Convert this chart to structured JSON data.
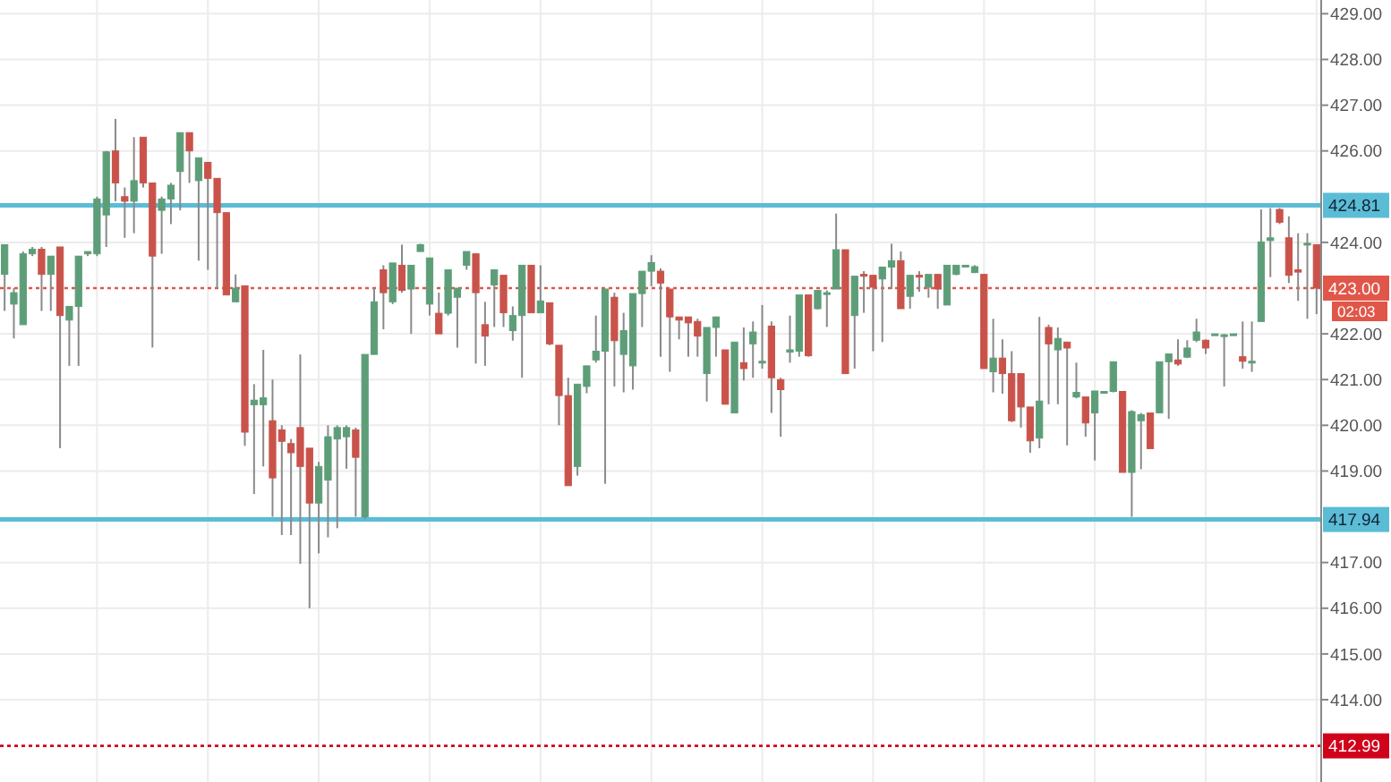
{
  "chart_data": {
    "type": "candlestick",
    "categories": [
      null,
      null,
      null,
      null,
      null,
      null,
      null,
      null,
      null,
      null,
      null,
      null,
      null,
      null,
      null,
      null,
      null,
      null,
      null,
      null,
      null,
      null,
      null,
      null,
      null,
      null,
      null,
      null,
      null,
      null,
      null,
      null,
      null,
      null,
      null,
      null,
      null,
      null,
      null,
      null,
      null,
      null,
      null,
      null,
      null,
      null,
      null,
      null,
      null,
      null,
      null,
      null,
      null,
      null,
      null,
      null,
      null,
      null,
      null,
      null,
      null,
      null,
      null,
      null,
      null,
      null,
      null,
      null,
      null,
      null,
      null,
      null,
      null,
      null,
      null,
      null,
      null,
      null,
      null,
      null,
      null,
      null,
      null,
      null,
      null,
      null,
      null,
      null,
      null,
      null,
      null,
      null,
      null,
      null,
      null,
      null,
      null,
      null,
      null,
      null,
      null,
      null,
      null,
      null,
      null,
      null,
      null,
      null,
      null,
      null,
      null,
      null,
      null,
      null,
      null,
      null,
      null,
      null,
      null,
      null,
      null,
      null,
      null,
      null,
      null,
      null,
      null,
      null,
      null,
      null,
      null,
      null,
      null,
      null,
      null,
      null,
      null,
      null,
      null,
      null,
      null,
      null,
      null
    ],
    "ohlc": [
      [
        423.3,
        423.95,
        422.5,
        423.95
      ],
      [
        422.65,
        423.0,
        421.9,
        422.9
      ],
      [
        422.2,
        423.8,
        422.2,
        423.75
      ],
      [
        423.75,
        423.9,
        423.7,
        423.85
      ],
      [
        423.85,
        423.9,
        422.5,
        423.3
      ],
      [
        423.3,
        423.7,
        422.5,
        423.7
      ],
      [
        423.9,
        423.9,
        419.5,
        422.4
      ],
      [
        422.3,
        422.6,
        421.3,
        422.6
      ],
      [
        422.6,
        423.7,
        421.3,
        423.7
      ],
      [
        423.75,
        423.8,
        423.7,
        423.8
      ],
      [
        423.75,
        425.0,
        423.7,
        424.95
      ],
      [
        424.6,
        426.0,
        423.9,
        425.98
      ],
      [
        426.0,
        426.7,
        424.9,
        425.3
      ],
      [
        425.0,
        425.2,
        424.1,
        424.9
      ],
      [
        424.9,
        426.3,
        424.2,
        425.35
      ],
      [
        426.3,
        426.3,
        425.2,
        425.3
      ],
      [
        425.3,
        425.3,
        421.7,
        423.7
      ],
      [
        424.7,
        425.0,
        423.75,
        424.95
      ],
      [
        424.95,
        425.3,
        424.4,
        425.25
      ],
      [
        425.55,
        426.4,
        424.7,
        426.4
      ],
      [
        426.4,
        426.4,
        425.3,
        426.0
      ],
      [
        425.35,
        425.85,
        423.6,
        425.85
      ],
      [
        425.75,
        425.75,
        423.4,
        425.4
      ],
      [
        425.4,
        425.4,
        423.0,
        424.65
      ],
      [
        424.65,
        424.65,
        422.85,
        422.85
      ],
      [
        422.7,
        423.3,
        422.7,
        423.0
      ],
      [
        423.05,
        423.05,
        419.55,
        419.85
      ],
      [
        420.45,
        420.9,
        418.5,
        420.55
      ],
      [
        420.45,
        421.65,
        419.1,
        420.6
      ],
      [
        420.1,
        421.0,
        418.0,
        418.85
      ],
      [
        419.9,
        420.0,
        417.6,
        419.65
      ],
      [
        419.6,
        419.7,
        417.6,
        419.4
      ],
      [
        419.95,
        421.55,
        416.97,
        419.1
      ],
      [
        419.5,
        419.5,
        416.0,
        418.3
      ],
      [
        418.3,
        419.2,
        417.2,
        419.1
      ],
      [
        418.8,
        420.0,
        417.55,
        419.75
      ],
      [
        419.7,
        420.0,
        417.75,
        419.95
      ],
      [
        419.75,
        420.0,
        419.05,
        419.95
      ],
      [
        419.9,
        419.95,
        418.0,
        419.3
      ],
      [
        418.0,
        421.55,
        417.95,
        421.55
      ],
      [
        421.55,
        423.0,
        421.55,
        422.7
      ],
      [
        423.4,
        423.5,
        422.1,
        422.9
      ],
      [
        422.7,
        423.55,
        422.65,
        423.55
      ],
      [
        423.5,
        423.95,
        422.9,
        422.95
      ],
      [
        422.98,
        423.5,
        422.0,
        423.5
      ],
      [
        423.8,
        423.97,
        423.8,
        423.95
      ],
      [
        422.65,
        423.66,
        422.4,
        423.66
      ],
      [
        422.45,
        422.9,
        422.0,
        422.0
      ],
      [
        422.45,
        423.4,
        422.4,
        423.4
      ],
      [
        422.8,
        423.0,
        421.7,
        423.0
      ],
      [
        423.5,
        423.8,
        423.4,
        423.8
      ],
      [
        423.75,
        423.75,
        421.35,
        422.9
      ],
      [
        422.2,
        422.7,
        421.3,
        421.95
      ],
      [
        423.07,
        423.4,
        422.15,
        423.4
      ],
      [
        423.28,
        423.28,
        422.15,
        422.46
      ],
      [
        422.07,
        422.6,
        421.85,
        422.4
      ],
      [
        422.4,
        423.5,
        421.04,
        423.5
      ],
      [
        423.5,
        423.5,
        422.46,
        422.46
      ],
      [
        422.46,
        423.5,
        422.46,
        422.72
      ],
      [
        422.68,
        422.68,
        421.75,
        421.78
      ],
      [
        421.75,
        421.75,
        420.0,
        420.65
      ],
      [
        420.65,
        421.04,
        418.68,
        418.68
      ],
      [
        419.1,
        420.9,
        418.9,
        420.9
      ],
      [
        420.85,
        421.3,
        420.7,
        421.3
      ],
      [
        421.43,
        422.4,
        421.37,
        421.62
      ],
      [
        421.62,
        422.98,
        418.72,
        422.98
      ],
      [
        422.8,
        422.9,
        420.85,
        421.85
      ],
      [
        421.55,
        422.46,
        420.72,
        422.07
      ],
      [
        421.3,
        422.88,
        420.78,
        422.88
      ],
      [
        422.88,
        423.37,
        422.15,
        423.37
      ],
      [
        423.37,
        423.72,
        423.04,
        423.56
      ],
      [
        423.37,
        423.43,
        421.5,
        423.11
      ],
      [
        422.98,
        422.98,
        421.17,
        422.37
      ],
      [
        422.37,
        422.37,
        421.88,
        422.3
      ],
      [
        422.37,
        422.37,
        421.5,
        422.24
      ],
      [
        422.27,
        422.33,
        421.5,
        421.95
      ],
      [
        421.13,
        422.14,
        420.52,
        422.14
      ],
      [
        422.14,
        422.37,
        421.5,
        422.37
      ],
      [
        421.65,
        421.65,
        420.46,
        420.46
      ],
      [
        420.27,
        421.82,
        420.27,
        421.82
      ],
      [
        421.37,
        422.14,
        420.98,
        421.24
      ],
      [
        421.78,
        422.27,
        421.04,
        422.04
      ],
      [
        421.39,
        422.63,
        421.24,
        421.4
      ],
      [
        422.17,
        422.27,
        420.27,
        421.04
      ],
      [
        421.0,
        421.04,
        419.75,
        420.78
      ],
      [
        421.6,
        422.4,
        421.37,
        421.65
      ],
      [
        421.62,
        422.85,
        421.5,
        422.85
      ],
      [
        422.85,
        422.85,
        421.5,
        421.52
      ],
      [
        422.55,
        422.95,
        422.53,
        422.95
      ],
      [
        422.9,
        422.95,
        422.15,
        422.9
      ],
      [
        422.98,
        424.63,
        422.98,
        423.84
      ],
      [
        423.84,
        423.84,
        421.13,
        421.13
      ],
      [
        422.4,
        423.26,
        421.24,
        423.26
      ],
      [
        423.3,
        423.37,
        422.46,
        423.26
      ],
      [
        423.28,
        423.28,
        421.62,
        423.02
      ],
      [
        423.2,
        423.46,
        421.82,
        423.46
      ],
      [
        423.46,
        423.97,
        422.98,
        423.6
      ],
      [
        423.6,
        423.8,
        422.55,
        422.55
      ],
      [
        422.82,
        423.28,
        422.55,
        423.28
      ],
      [
        423.28,
        423.37,
        422.92,
        423.25
      ],
      [
        423.02,
        423.3,
        422.79,
        423.3
      ],
      [
        423.3,
        423.3,
        422.55,
        422.98
      ],
      [
        422.63,
        423.5,
        422.63,
        423.5
      ],
      [
        423.3,
        423.5,
        423.28,
        423.5
      ],
      [
        423.5,
        423.5,
        423.48,
        423.5
      ],
      [
        423.34,
        423.5,
        423.33,
        423.47
      ],
      [
        423.3,
        423.3,
        421.24,
        421.24
      ],
      [
        421.17,
        422.33,
        420.72,
        421.47
      ],
      [
        421.47,
        421.88,
        420.69,
        421.13
      ],
      [
        421.13,
        421.62,
        420.07,
        420.1
      ],
      [
        421.13,
        421.13,
        419.95,
        420.4
      ],
      [
        420.4,
        420.4,
        419.4,
        419.66
      ],
      [
        419.72,
        422.37,
        419.5,
        420.53
      ],
      [
        422.14,
        422.2,
        420.46,
        421.78
      ],
      [
        421.65,
        422.14,
        420.46,
        421.9
      ],
      [
        421.82,
        421.82,
        419.56,
        421.69
      ],
      [
        420.62,
        421.37,
        420.59,
        420.72
      ],
      [
        420.62,
        420.62,
        419.75,
        420.05
      ],
      [
        420.27,
        420.75,
        419.23,
        420.75
      ],
      [
        420.74,
        420.75,
        420.72,
        420.74
      ],
      [
        420.74,
        421.39,
        420.72,
        421.39
      ],
      [
        420.74,
        420.74,
        418.97,
        418.97
      ],
      [
        418.97,
        420.33,
        418.0,
        420.3
      ],
      [
        420.1,
        420.27,
        419.04,
        420.23
      ],
      [
        420.27,
        420.27,
        419.49,
        419.49
      ],
      [
        420.27,
        421.39,
        420.27,
        421.39
      ],
      [
        421.39,
        421.56,
        420.14,
        421.56
      ],
      [
        421.43,
        421.88,
        421.3,
        421.34
      ],
      [
        421.49,
        421.86,
        421.47,
        421.69
      ],
      [
        421.86,
        422.33,
        421.82,
        422.04
      ],
      [
        421.86,
        421.88,
        421.56,
        421.69
      ],
      [
        422.0,
        422.0,
        421.97,
        422.0
      ],
      [
        421.98,
        422.0,
        420.85,
        421.98
      ],
      [
        422.0,
        422.0,
        421.98,
        422.0
      ],
      [
        421.5,
        422.27,
        421.24,
        421.4
      ],
      [
        421.4,
        422.27,
        421.17,
        421.4
      ],
      [
        422.27,
        424.72,
        422.27,
        424.01
      ],
      [
        424.04,
        424.75,
        423.24,
        424.1
      ],
      [
        424.72,
        424.75,
        424.4,
        424.44
      ],
      [
        424.1,
        424.57,
        423.11,
        423.28
      ],
      [
        423.4,
        424.2,
        422.72,
        423.35
      ],
      [
        423.98,
        424.2,
        422.33,
        423.98
      ],
      [
        423.95,
        423.95,
        422.43,
        423.0
      ]
    ],
    "ylim": [
      412.2,
      429.3
    ],
    "yticks": [
      {
        "value": 414,
        "label": "414.00"
      },
      {
        "value": 415,
        "label": "415.00"
      },
      {
        "value": 416,
        "label": "416.00"
      },
      {
        "value": 417,
        "label": "417.00"
      },
      {
        "value": 419,
        "label": "419.00"
      },
      {
        "value": 420,
        "label": "420.00"
      },
      {
        "value": 421,
        "label": "421.00"
      },
      {
        "value": 422,
        "label": "422.00"
      },
      {
        "value": 424,
        "label": "424.00"
      },
      {
        "value": 426,
        "label": "426.00"
      },
      {
        "value": 427,
        "label": "427.00"
      },
      {
        "value": 428,
        "label": "428.00"
      },
      {
        "value": 429,
        "label": "429.00"
      }
    ],
    "grid": true,
    "ref_lines": [
      {
        "axis": "y",
        "value": 424.81,
        "label": "424.81",
        "color": "#5bbcd6",
        "line_style": "solid"
      },
      {
        "axis": "y",
        "value": 417.94,
        "label": "417.94",
        "color": "#5bbcd6",
        "line_style": "solid"
      },
      {
        "axis": "y",
        "value": 423.0,
        "label": "423.00",
        "color": "#e0574a",
        "line_style": "dotted"
      },
      {
        "axis": "y",
        "value": 412.99,
        "label": "412.99",
        "color": "#d0021b",
        "line_style": "dotted"
      }
    ],
    "annotations": [
      "02:03"
    ]
  }
}
